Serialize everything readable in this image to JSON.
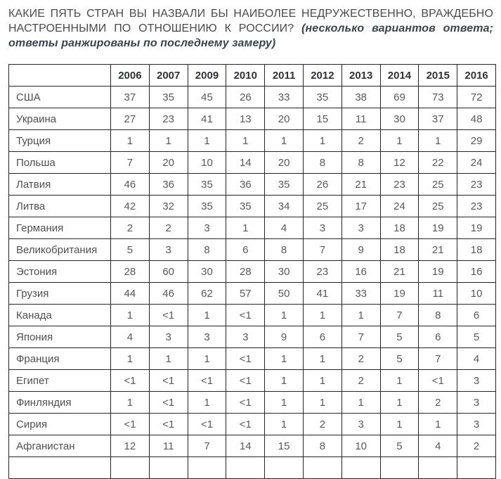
{
  "title": {
    "question": "КАКИЕ ПЯТЬ СТРАН ВЫ НАЗВАЛИ БЫ НАИБОЛЕЕ НЕДРУЖЕСТВЕННО, ВРАЖДЕБНО НАСТРОЕННЫМИ ПО ОТНОШЕНИЮ К РОССИИ? ",
    "note": "(несколько вариантов ответа; ответы ранжированы по последнему замеру)"
  },
  "table": {
    "year_headers": [
      "2006",
      "2007",
      "2009",
      "2010",
      "2011",
      "2012",
      "2013",
      "2014",
      "2015",
      "2016"
    ],
    "rows": [
      {
        "country": "США",
        "values": [
          "37",
          "35",
          "45",
          "26",
          "33",
          "35",
          "38",
          "69",
          "73",
          "72"
        ]
      },
      {
        "country": "Украина",
        "values": [
          "27",
          "23",
          "41",
          "13",
          "20",
          "15",
          "11",
          "30",
          "37",
          "48"
        ]
      },
      {
        "country": "Турция",
        "values": [
          "1",
          "1",
          "1",
          "1",
          "1",
          "1",
          "2",
          "1",
          "1",
          "29"
        ]
      },
      {
        "country": "Польша",
        "values": [
          "7",
          "20",
          "10",
          "14",
          "20",
          "8",
          "8",
          "12",
          "22",
          "24"
        ]
      },
      {
        "country": "Латвия",
        "values": [
          "46",
          "36",
          "35",
          "36",
          "35",
          "26",
          "21",
          "23",
          "25",
          "23"
        ]
      },
      {
        "country": "Литва",
        "values": [
          "42",
          "32",
          "35",
          "35",
          "34",
          "25",
          "17",
          "24",
          "25",
          "23"
        ]
      },
      {
        "country": "Германия",
        "values": [
          "2",
          "2",
          "3",
          "1",
          "4",
          "3",
          "3",
          "18",
          "19",
          "19"
        ]
      },
      {
        "country": "Великобритания",
        "values": [
          "5",
          "3",
          "8",
          "6",
          "8",
          "7",
          "9",
          "18",
          "21",
          "18"
        ]
      },
      {
        "country": "Эстония",
        "values": [
          "28",
          "60",
          "30",
          "28",
          "30",
          "23",
          "16",
          "21",
          "19",
          "16"
        ]
      },
      {
        "country": "Грузия",
        "values": [
          "44",
          "46",
          "62",
          "57",
          "50",
          "41",
          "33",
          "19",
          "11",
          "10"
        ]
      },
      {
        "country": "Канада",
        "values": [
          "1",
          "<1",
          "1",
          "<1",
          "1",
          "1",
          "1",
          "7",
          "8",
          "6"
        ]
      },
      {
        "country": "Япония",
        "values": [
          "4",
          "3",
          "3",
          "3",
          "9",
          "6",
          "7",
          "5",
          "6",
          "5"
        ]
      },
      {
        "country": "Франция",
        "values": [
          "1",
          "1",
          "1",
          "<1",
          "1",
          "1",
          "2",
          "5",
          "7",
          "4"
        ]
      },
      {
        "country": "Египет",
        "values": [
          "<1",
          "<1",
          "<1",
          "<1",
          "1",
          "1",
          "2",
          "1",
          "<1",
          "3"
        ]
      },
      {
        "country": "Финляндия",
        "values": [
          "1",
          "<1",
          "1",
          "<1",
          "1",
          "1",
          "1",
          "1",
          "2",
          "3"
        ]
      },
      {
        "country": "Сирия",
        "values": [
          "<1",
          "<1",
          "<1",
          "<1",
          "1",
          "2",
          "3",
          "1",
          "1",
          "3"
        ]
      },
      {
        "country": "Афганистан",
        "values": [
          "12",
          "11",
          "7",
          "14",
          "15",
          "8",
          "10",
          "5",
          "4",
          "2"
        ]
      },
      {
        "country": "",
        "values": [
          "",
          "",
          "",
          "",
          "",
          "",
          "",
          "",
          "",
          ""
        ]
      }
    ]
  },
  "colors": {
    "question_text": "#4a4a4a",
    "question_note": "#36454f",
    "table_border": "#262626",
    "header_text": "#2e3338",
    "cell_text": "#585858"
  }
}
